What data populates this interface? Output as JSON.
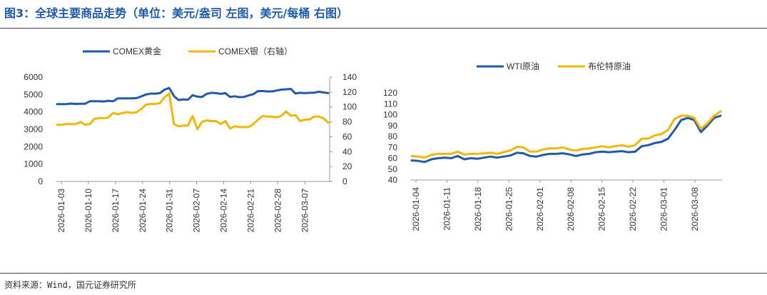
{
  "figure": {
    "title": "图3：全球主要商品走势（单位：美元/盎司 左图，美元/每桶 右图）",
    "source": "资料来源：Wind，国元证券研究所"
  },
  "colors": {
    "blue": "#1f5ba8",
    "gold": "#f2b705",
    "title": "#1f5ba8"
  },
  "chart_data": [
    {
      "type": "line",
      "name": "left-chart",
      "legend": [
        "COMEX黄金",
        "COMEX银（右轴）"
      ],
      "y_left": {
        "min": 0,
        "max": 6000,
        "ticks": [
          "0",
          "1000",
          "2000",
          "3000",
          "4000",
          "5000",
          "6000"
        ]
      },
      "y_right": {
        "min": 0,
        "max": 140,
        "ticks": [
          "0",
          "20",
          "40",
          "60",
          "80",
          "100",
          "120",
          "140"
        ]
      },
      "x_labels": [
        "2026-01-03",
        "2026-01-10",
        "2026-01-17",
        "2026-01-24",
        "2026-01-31",
        "2026-02-07",
        "2026-02-14",
        "2026-02-21",
        "2026-02-28",
        "2026-03-07"
      ],
      "series": [
        {
          "name": "COMEX黄金",
          "axis": "left",
          "color": "#1f5ba8",
          "values": [
            4450,
            4450,
            4450,
            4480,
            4460,
            4470,
            4470,
            4610,
            4610,
            4610,
            4600,
            4640,
            4610,
            4780,
            4780,
            4780,
            4780,
            4790,
            4890,
            5000,
            5050,
            5050,
            5080,
            5280,
            5380,
            4910,
            4680,
            4720,
            4700,
            4960,
            4880,
            4860,
            5040,
            5100,
            5080,
            5040,
            5080,
            4860,
            4900,
            4850,
            4860,
            4950,
            5020,
            5200,
            5200,
            5180,
            5180,
            5230,
            5280,
            5300,
            5320,
            5060,
            5100,
            5080,
            5100,
            5100,
            5160,
            5120,
            5080
          ]
        },
        {
          "name": "COMEX银（右轴）",
          "axis": "right",
          "color": "#f2b705",
          "values": [
            76,
            76,
            77,
            77,
            77,
            80,
            76,
            77,
            84,
            85,
            85,
            86,
            92,
            90,
            92,
            93,
            92,
            93,
            97,
            103,
            104,
            104,
            105,
            113,
            118,
            77,
            74,
            75,
            75,
            88,
            70,
            80,
            82,
            81,
            81,
            77,
            81,
            71,
            74,
            73,
            73,
            73,
            77,
            83,
            88,
            87,
            87,
            86,
            88,
            94,
            88,
            89,
            81,
            83,
            83,
            87,
            87,
            85,
            79
          ]
        }
      ]
    },
    {
      "type": "line",
      "name": "right-chart",
      "legend": [
        "WTI原油",
        "布伦特原油"
      ],
      "y_left": {
        "min": 40,
        "max": 120,
        "ticks": [
          "40",
          "50",
          "60",
          "70",
          "80",
          "90",
          "100",
          "110",
          "120"
        ]
      },
      "x_labels": [
        "2026-01-04",
        "2026-01-11",
        "2026-01-18",
        "2026-01-25",
        "2026-02-01",
        "2026-02-08",
        "2026-02-15",
        "2026-02-22",
        "2026-03-01",
        "2026-03-08"
      ],
      "series": [
        {
          "name": "WTI原油",
          "axis": "left",
          "color": "#1f5ba8",
          "values": [
            58,
            57.5,
            56.5,
            59,
            60,
            60.5,
            60,
            62,
            59,
            60,
            59.5,
            60.5,
            61.5,
            60.5,
            61.5,
            62.5,
            65,
            64.5,
            62,
            61.5,
            63,
            64,
            64,
            64.5,
            63.5,
            62,
            63.5,
            64,
            65.5,
            66,
            65.5,
            66,
            66.5,
            65.5,
            66,
            71,
            72,
            74,
            75,
            78,
            86,
            95,
            97,
            95,
            84,
            90,
            97,
            99
          ]
        },
        {
          "name": "布伦特原油",
          "axis": "left",
          "color": "#f2b705",
          "values": [
            62,
            61.5,
            60.5,
            63,
            64,
            64,
            64,
            66,
            63.5,
            64,
            64,
            64.5,
            65,
            64,
            65.5,
            67,
            70.5,
            70,
            66,
            66,
            68,
            69,
            69,
            70,
            68,
            67,
            68.5,
            69,
            70,
            71,
            70,
            71,
            72,
            70.5,
            72,
            78,
            78,
            81,
            82,
            86,
            96,
            99,
            99,
            97,
            87,
            92,
            99,
            103
          ]
        }
      ]
    }
  ]
}
